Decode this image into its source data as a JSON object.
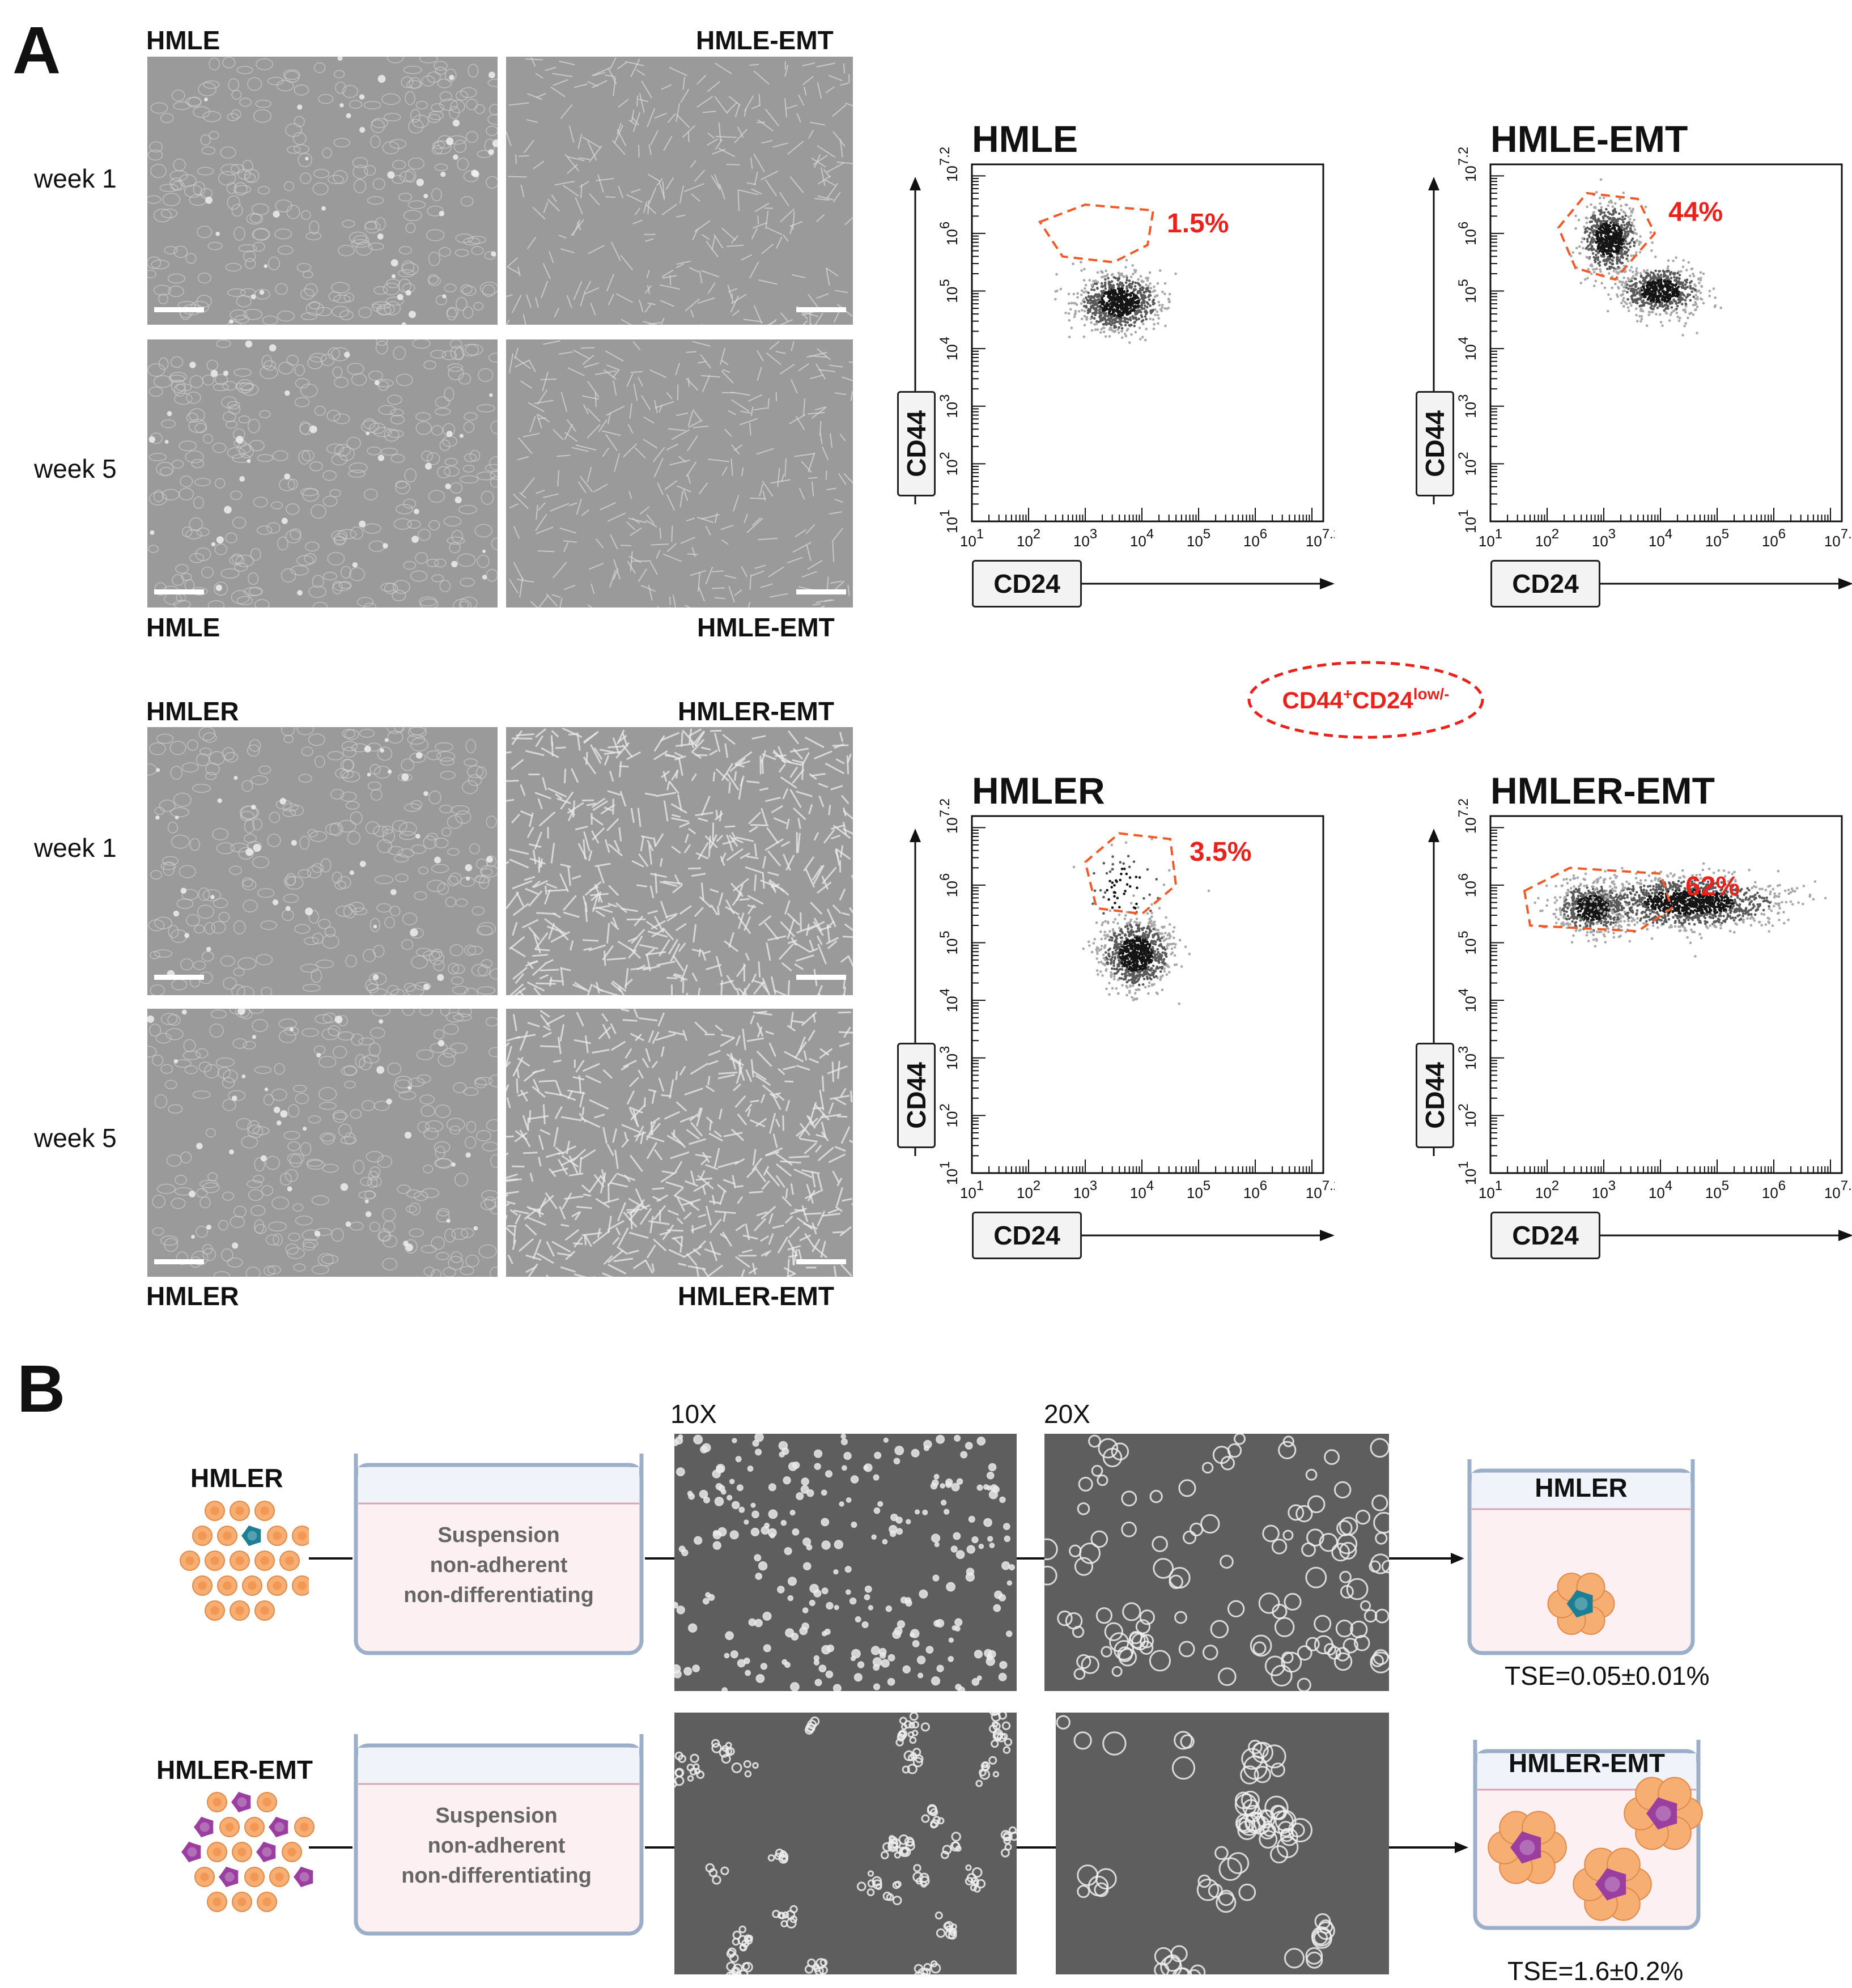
{
  "panel_a": {
    "letter": "A",
    "images": {
      "top": {
        "left_top_label": "HMLE",
        "right_top_label": "HMLE-EMT",
        "left_bottom_label": "HMLE",
        "right_bottom_label": "HMLE-EMT",
        "week1": "week 1",
        "week5": "week 5"
      },
      "bottom": {
        "left_top_label": "HMLER",
        "right_top_label": "HMLER-EMT",
        "left_bottom_label": "HMLER",
        "right_bottom_label": "HMLER-EMT",
        "week1": "week 1",
        "week5": "week 5"
      }
    },
    "gate_legend": {
      "base": "CD44",
      "sup1": "+",
      "mid": "CD24",
      "sup2": "low/-"
    }
  },
  "chart_data": [
    {
      "type": "scatter",
      "title": "HMLE",
      "xlabel": "CD24",
      "ylabel": "CD44",
      "xlim": [
        1,
        7.2
      ],
      "ylim": [
        1,
        7.2
      ],
      "log_scale": true,
      "gate_percent": "1.5%",
      "clusters": [
        {
          "x": 3.6,
          "y": 4.8,
          "sx": 0.35,
          "sy": 0.25,
          "n": 900
        }
      ],
      "gate": [
        [
          2.2,
          6.2
        ],
        [
          3.0,
          6.5
        ],
        [
          4.2,
          6.4
        ],
        [
          4.1,
          5.8
        ],
        [
          3.5,
          5.5
        ],
        [
          2.6,
          5.6
        ]
      ]
    },
    {
      "type": "scatter",
      "title": "HMLE-EMT",
      "xlabel": "CD24",
      "ylabel": "CD44",
      "xlim": [
        1,
        7.2
      ],
      "ylim": [
        1,
        7.2
      ],
      "log_scale": true,
      "gate_percent": "44%",
      "clusters": [
        {
          "x": 3.1,
          "y": 5.9,
          "sx": 0.25,
          "sy": 0.3,
          "n": 700
        },
        {
          "x": 4.0,
          "y": 5.0,
          "sx": 0.35,
          "sy": 0.2,
          "n": 700
        }
      ],
      "gate": [
        [
          2.2,
          6.1
        ],
        [
          2.7,
          6.7
        ],
        [
          3.6,
          6.6
        ],
        [
          3.9,
          6.0
        ],
        [
          3.2,
          5.2
        ],
        [
          2.5,
          5.4
        ]
      ]
    },
    {
      "type": "scatter",
      "title": "HMLER",
      "xlabel": "CD24",
      "ylabel": "CD44",
      "xlim": [
        1,
        7.2
      ],
      "ylim": [
        1,
        7.2
      ],
      "log_scale": true,
      "gate_percent": "3.5%",
      "clusters": [
        {
          "x": 3.9,
          "y": 4.8,
          "sx": 0.3,
          "sy": 0.3,
          "n": 900
        },
        {
          "x": 3.7,
          "y": 5.9,
          "sx": 0.35,
          "sy": 0.4,
          "n": 70
        }
      ],
      "gate": [
        [
          3.0,
          6.4
        ],
        [
          3.6,
          6.9
        ],
        [
          4.5,
          6.8
        ],
        [
          4.6,
          6.0
        ],
        [
          4.0,
          5.5
        ],
        [
          3.2,
          5.6
        ]
      ]
    },
    {
      "type": "scatter",
      "title": "HMLER-EMT",
      "xlabel": "CD24",
      "ylabel": "CD44",
      "xlim": [
        1,
        7.2
      ],
      "ylim": [
        1,
        7.2
      ],
      "log_scale": true,
      "gate_percent": "62%",
      "clusters": [
        {
          "x": 2.8,
          "y": 5.6,
          "sx": 0.3,
          "sy": 0.22,
          "n": 700
        },
        {
          "x": 4.5,
          "y": 5.7,
          "sx": 0.8,
          "sy": 0.22,
          "n": 1300
        }
      ],
      "gate": [
        [
          1.6,
          5.9
        ],
        [
          2.4,
          6.3
        ],
        [
          4.0,
          6.2
        ],
        [
          4.2,
          5.6
        ],
        [
          3.6,
          5.2
        ],
        [
          1.7,
          5.3
        ]
      ]
    }
  ],
  "panel_b": {
    "letter": "B",
    "mag_10x": "10X",
    "mag_20x": "20X",
    "rows": [
      {
        "cell_line": "HMLER",
        "well_lines": [
          "Suspension",
          "non-adherent",
          "non-differentiating"
        ],
        "result_label": "HMLER",
        "tse": "TSE=0.05±0.01%"
      },
      {
        "cell_line": "HMLER-EMT",
        "well_lines": [
          "Suspension",
          "non-adherent",
          "non-differentiating"
        ],
        "result_label": "HMLER-EMT",
        "tse": "TSE=1.6±0.2%"
      }
    ]
  },
  "colors": {
    "gate_red": "#e8231d",
    "cell_orange": "#f6ae73",
    "stem_teal": "#1c7f93",
    "stem_purple": "#9a3ea0",
    "well_fill": "#fdf0f3"
  }
}
